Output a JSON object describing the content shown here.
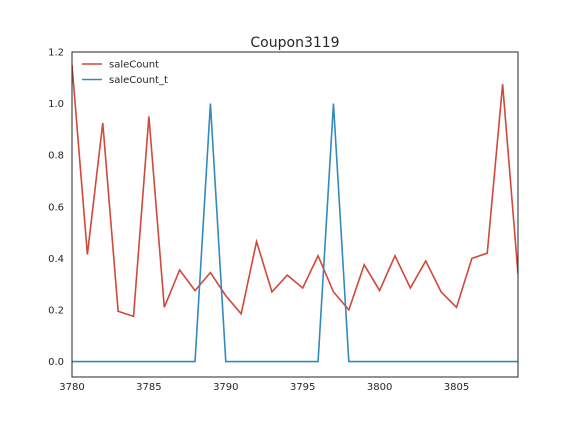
{
  "chart_data": {
    "type": "line",
    "title": "Coupon3119",
    "xlabel": "",
    "ylabel": "",
    "xlim": [
      3780,
      3809
    ],
    "ylim": [
      -0.06,
      1.2
    ],
    "xticks": [
      3780,
      3785,
      3790,
      3795,
      3800,
      3805
    ],
    "yticks": [
      0.0,
      0.2,
      0.4,
      0.6,
      0.8,
      1.0,
      1.2
    ],
    "grid": false,
    "legend": {
      "position": "top-left"
    },
    "x": [
      3780,
      3781,
      3782,
      3783,
      3784,
      3785,
      3786,
      3787,
      3788,
      3789,
      3790,
      3791,
      3792,
      3793,
      3794,
      3795,
      3796,
      3797,
      3798,
      3799,
      3800,
      3801,
      3802,
      3803,
      3804,
      3805,
      3806,
      3807,
      3808,
      3809
    ],
    "series": [
      {
        "name": "saleCount",
        "color": "#d0493a",
        "values": [
          1.15,
          0.415,
          0.925,
          0.195,
          0.175,
          0.95,
          0.21,
          0.355,
          0.275,
          0.345,
          0.255,
          0.185,
          0.465,
          0.27,
          0.335,
          0.285,
          0.41,
          0.27,
          0.2,
          0.375,
          0.275,
          0.41,
          0.285,
          0.39,
          0.27,
          0.21,
          0.4,
          0.42,
          1.075,
          0.34
        ]
      },
      {
        "name": "saleCount_t",
        "color": "#348abd",
        "values": [
          0,
          0,
          0,
          0,
          0,
          0,
          0,
          0,
          0,
          1,
          0,
          0,
          0,
          0,
          0,
          0,
          0,
          1,
          0,
          0,
          0,
          0,
          0,
          0,
          0,
          0,
          0,
          0,
          0,
          0
        ]
      }
    ]
  }
}
